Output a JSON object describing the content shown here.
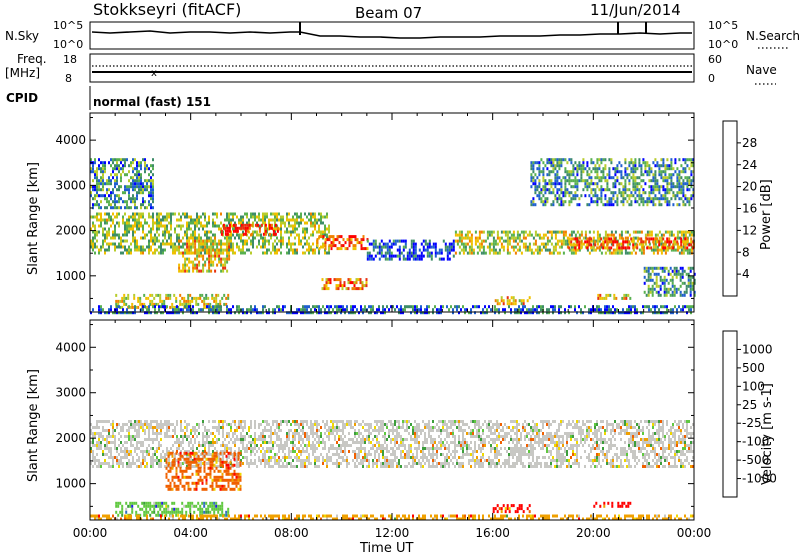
{
  "header": {
    "title": "Stokkseyri (fitACF)",
    "beam": "Beam 07",
    "date": "11/Jun/2014"
  },
  "top_panels": {
    "nsky_label": "N.Sky",
    "nsky_ticks": [
      "10^5",
      "10^0"
    ],
    "nsearch_label": "N.Search",
    "nsearch_ticks": [
      "10^5",
      "10^0"
    ],
    "freq_label": "Freq.",
    "freq_unit": "[MHz]",
    "freq_ticks": [
      "18",
      "8"
    ],
    "nave_label": "Nave",
    "nave_ticks": [
      "60",
      "0"
    ],
    "cpid_label": "CPID",
    "cpid_value": "normal (fast) 151"
  },
  "chart_data": [
    {
      "type": "heatmap",
      "name": "power",
      "ylabel": "Slant Range [km]",
      "xlabel": "Time UT",
      "x_ticks": [
        "00:00",
        "04:00",
        "08:00",
        "12:00",
        "16:00",
        "20:00",
        "00:00"
      ],
      "xlim_hours": [
        0,
        24
      ],
      "ylim": [
        200,
        4600
      ],
      "y_ticks": [
        1000,
        2000,
        3000,
        4000
      ],
      "colorbar_label": "Power [dB]",
      "colorbar_ticks": [
        "28",
        "24",
        "20",
        "16",
        "12",
        "8",
        "4"
      ],
      "colorbar_colors": [
        "#0000ff",
        "#1f5fcf",
        "#3d8c68",
        "#58b050",
        "#b8cc2c",
        "#f0c000",
        "#f08000",
        "#e83010",
        "#ff0000"
      ],
      "echo_regions": [
        {
          "t0": 0.0,
          "t1": 9.5,
          "r0": 1500,
          "r1": 2400,
          "level": 0.45
        },
        {
          "t0": 5.2,
          "t1": 7.5,
          "r0": 1900,
          "r1": 2150,
          "level": 0.9
        },
        {
          "t0": 3.5,
          "t1": 5.5,
          "r0": 1100,
          "r1": 1800,
          "level": 0.6
        },
        {
          "t0": 9.0,
          "t1": 11.0,
          "r0": 1600,
          "r1": 1900,
          "level": 0.8
        },
        {
          "t0": 9.2,
          "t1": 11.0,
          "r0": 700,
          "r1": 950,
          "level": 0.7
        },
        {
          "t0": 11.0,
          "t1": 14.5,
          "r0": 1400,
          "r1": 1800,
          "level": 0.15
        },
        {
          "t0": 14.5,
          "t1": 24.0,
          "r0": 1500,
          "r1": 2000,
          "level": 0.5
        },
        {
          "t0": 19.0,
          "t1": 24.0,
          "r0": 1650,
          "r1": 1850,
          "level": 0.8
        },
        {
          "t0": 0.0,
          "t1": 2.5,
          "r0": 2500,
          "r1": 3600,
          "level": 0.3
        },
        {
          "t0": 17.5,
          "t1": 24.0,
          "r0": 2600,
          "r1": 3600,
          "level": 0.3
        },
        {
          "t0": 1.0,
          "t1": 5.5,
          "r0": 300,
          "r1": 600,
          "level": 0.55
        },
        {
          "t0": 16.0,
          "t1": 17.5,
          "r0": 400,
          "r1": 550,
          "level": 0.6
        },
        {
          "t0": 20.0,
          "t1": 21.5,
          "r0": 500,
          "r1": 600,
          "level": 0.6
        },
        {
          "t0": 0.0,
          "t1": 24.0,
          "r0": 200,
          "r1": 350,
          "level": 0.2
        },
        {
          "t0": 22.0,
          "t1": 24.0,
          "r0": 600,
          "r1": 1200,
          "level": 0.3
        }
      ]
    },
    {
      "type": "heatmap",
      "name": "velocity",
      "ylabel": "Slant Range [km]",
      "xlabel": "Time UT",
      "x_ticks": [
        "00:00",
        "04:00",
        "08:00",
        "12:00",
        "16:00",
        "20:00",
        "00:00"
      ],
      "xlim_hours": [
        0,
        24
      ],
      "ylim": [
        200,
        4600
      ],
      "y_ticks": [
        1000,
        2000,
        3000,
        4000
      ],
      "colorbar_label": "Velocity [m s-1]",
      "colorbar_ticks": [
        "1000",
        "500",
        "100",
        "25",
        "-25",
        "-100",
        "-500",
        "-1000"
      ],
      "colorbar_colors": [
        "#ff0000",
        "#f06000",
        "#f0a000",
        "#f0d800",
        "#c8c8c4",
        "#3c9e3c",
        "#60c840",
        "#2f6fbf",
        "#2020e0"
      ],
      "echo_regions": [
        {
          "t0": 0.0,
          "t1": 24.0,
          "r0": 1400,
          "r1": 2400,
          "level": 0.45
        },
        {
          "t0": 3.0,
          "t1": 6.0,
          "r0": 900,
          "r1": 1700,
          "level": 0.15
        },
        {
          "t0": 1.0,
          "t1": 5.5,
          "r0": 300,
          "r1": 600,
          "level": 0.7
        },
        {
          "t0": 16.0,
          "t1": 17.5,
          "r0": 400,
          "r1": 550,
          "level": 0.1
        },
        {
          "t0": 20.0,
          "t1": 21.5,
          "r0": 500,
          "r1": 600,
          "level": 0.1
        },
        {
          "t0": 0.0,
          "t1": 24.0,
          "r0": 200,
          "r1": 320,
          "level": 0.3
        }
      ]
    }
  ]
}
